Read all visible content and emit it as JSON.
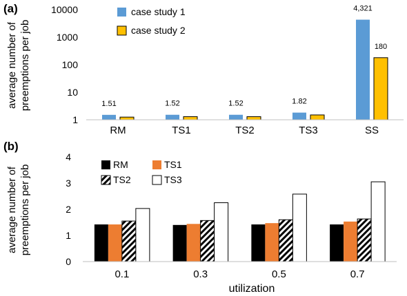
{
  "chart_data": [
    {
      "type": "bar",
      "panel_label": "(a)",
      "title": "",
      "xlabel": "",
      "ylabel": "average number of preemptions per job",
      "ylabel_lines": [
        "average number of",
        "preemptions per job"
      ],
      "y_scale": "log",
      "ylim": [
        1,
        10000
      ],
      "yticks": [
        1,
        10,
        100,
        1000,
        10000
      ],
      "ytick_labels": [
        "1",
        "10",
        "100",
        "1000",
        "10000"
      ],
      "categories": [
        "RM",
        "TS1",
        "TS2",
        "TS3",
        "SS"
      ],
      "series": [
        {
          "name": "case study 1",
          "color": "#5b9bd5",
          "values": [
            1.51,
            1.52,
            1.52,
            1.82,
            4321
          ]
        },
        {
          "name": "case study 2",
          "color": "#ffc000",
          "values": [
            1.25,
            1.3,
            1.3,
            1.5,
            180
          ]
        }
      ],
      "data_labels": [
        {
          "category": "RM",
          "series": 0,
          "text": "1.51"
        },
        {
          "category": "TS1",
          "series": 0,
          "text": "1.52"
        },
        {
          "category": "TS2",
          "series": 0,
          "text": "1.52"
        },
        {
          "category": "TS3",
          "series": 0,
          "text": "1.82"
        },
        {
          "category": "SS",
          "series": 0,
          "text": "4,321"
        },
        {
          "category": "SS",
          "series": 1,
          "text": "180"
        }
      ],
      "grid": false,
      "legend": "top-left"
    },
    {
      "type": "bar",
      "panel_label": "(b)",
      "title": "",
      "xlabel": "utilization",
      "ylabel": "average number of preemptions per job",
      "ylabel_lines": [
        "average number of",
        "preemptions per job"
      ],
      "ylim": [
        0,
        4
      ],
      "yticks": [
        0,
        1,
        2,
        3,
        4
      ],
      "ytick_labels": [
        "0",
        "1",
        "2",
        "3",
        "4"
      ],
      "categories": [
        "0.1",
        "0.3",
        "0.5",
        "0.7"
      ],
      "series": [
        {
          "name": "RM",
          "color": "#000000",
          "pattern": "solid",
          "values": [
            1.42,
            1.4,
            1.42,
            1.42
          ]
        },
        {
          "name": "TS1",
          "color": "#ed7d31",
          "pattern": "solid",
          "values": [
            1.42,
            1.44,
            1.47,
            1.53
          ]
        },
        {
          "name": "TS2",
          "color": "#000000",
          "pattern": "diagonal-stripes",
          "values": [
            1.55,
            1.57,
            1.6,
            1.63
          ]
        },
        {
          "name": "TS3",
          "color": "#ffffff",
          "pattern": "outline",
          "values": [
            2.03,
            2.25,
            2.58,
            3.05
          ]
        }
      ],
      "grid": false,
      "legend": "top-left"
    }
  ]
}
